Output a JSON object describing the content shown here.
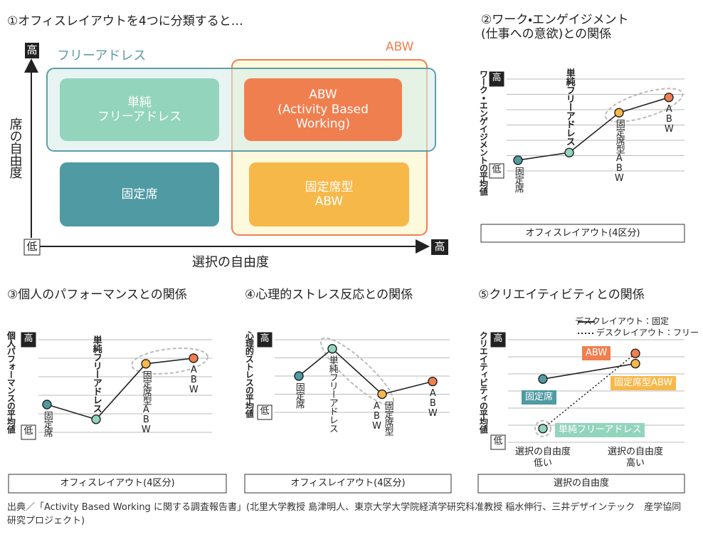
{
  "diagram": {
    "title": "①オフィスレイアウトを4つに分類すると…",
    "y_axis": "席の自由度",
    "x_axis": "選択の自由度",
    "y_high": "高",
    "x_high": "高",
    "low": "低",
    "groups": [
      "フリーアドレス",
      "ABW"
    ],
    "boxes": [
      "単純\nフリーアドレス",
      "ABW\n(Activity Based\nWorking)",
      "固定席",
      "固定席型\nABW"
    ]
  },
  "chart_data": [
    {
      "type": "line",
      "title": "②ワーク・エンゲイジメント\n(仕事への意欲)との関係",
      "y_label": "ワーク・エンゲイジメントの平均値",
      "x_label": "オフィスレイアウト(4区分)",
      "categories": [
        "固定席",
        "単純フリーアドレス",
        "固定席型ABW",
        "ABW"
      ],
      "colors": [
        "#4f9aa3",
        "#93d4bd",
        "#f7b84a",
        "#f07f50"
      ],
      "values": [
        0.7,
        1.2,
        3.8,
        4.8
      ],
      "ylim": [
        0,
        6
      ],
      "yticks": [
        {
          "value": 0,
          "label": "低"
        },
        {
          "value": 1,
          "label": null
        },
        {
          "value": 2,
          "label": null
        },
        {
          "value": 3,
          "label": null
        },
        {
          "value": 4,
          "label": null
        },
        {
          "value": 5,
          "label": null
        },
        {
          "value": 6,
          "label": "高"
        }
      ],
      "highlight": [
        2,
        3
      ]
    },
    {
      "type": "line",
      "title": "③個人のパフォーマンスとの関係",
      "y_label": "個人パフォーマンスの平均値",
      "x_label": "オフィスレイアウト(4区分)",
      "categories": [
        "固定席",
        "単純フリーアドレス",
        "固定席型ABW",
        "ABW"
      ],
      "colors": [
        "#4f9aa3",
        "#93d4bd",
        "#f7b84a",
        "#f07f50"
      ],
      "values": [
        1.5,
        0.7,
        3.7,
        4.0
      ],
      "ylim": [
        0,
        5
      ],
      "yticks": [
        {
          "value": 0,
          "label": "低"
        },
        {
          "value": 1,
          "label": null
        },
        {
          "value": 2,
          "label": null
        },
        {
          "value": 3,
          "label": null
        },
        {
          "value": 4,
          "label": null
        },
        {
          "value": 5,
          "label": "高"
        }
      ],
      "highlight": [
        2,
        3
      ]
    },
    {
      "type": "line",
      "title": "④心理的ストレス反応との関係",
      "y_label": "心理的ストレスの平均値",
      "x_label": "オフィスレイアウト(4区分)",
      "categories": [
        "固定席",
        "単純フリーアドレス",
        "固定席型ABW",
        "ABW"
      ],
      "colors": [
        "#4f9aa3",
        "#93d4bd",
        "#f7b84a",
        "#f07f50"
      ],
      "values": [
        2.0,
        3.5,
        1.0,
        1.7
      ],
      "ylim": [
        0,
        4
      ],
      "yticks": [
        {
          "value": 0,
          "label": "低"
        },
        {
          "value": 1,
          "label": null
        },
        {
          "value": 2,
          "label": null
        },
        {
          "value": 3,
          "label": null
        },
        {
          "value": 4,
          "label": "高"
        }
      ],
      "highlight": [
        1,
        2
      ]
    },
    {
      "type": "line",
      "title": "⑤クリエイティビティとの関係",
      "y_label": "クリエイティビティの平均値",
      "x_label": "選択の自由度",
      "categories": [
        "選択の自由度\n低い",
        "選択の自由度\n高い"
      ],
      "series": [
        {
          "name": "デスクレイアウト：固定",
          "style": "solid",
          "values": [
            3.7,
            4.6
          ],
          "point_labels": [
            "固定席",
            "固定席型ABW"
          ],
          "colors": [
            "#4f9aa3",
            "#f7b84a"
          ]
        },
        {
          "name": "デスクレイアウト：フリー",
          "style": "dotted",
          "values": [
            0.8,
            5.2
          ],
          "point_labels": [
            "単純フリーアドレス",
            "ABW"
          ],
          "colors": [
            "#93d4bd",
            "#f07f50"
          ]
        }
      ],
      "ylim": [
        0,
        6
      ],
      "yticks": [
        {
          "value": 0,
          "label": "低"
        },
        {
          "value": 1,
          "label": null
        },
        {
          "value": 2,
          "label": null
        },
        {
          "value": 3,
          "label": null
        },
        {
          "value": 4,
          "label": null
        },
        {
          "value": 5,
          "label": null
        },
        {
          "value": 6,
          "label": "高"
        }
      ],
      "highlight_series": 1,
      "highlight_point": 0
    }
  ],
  "source": "出典／「Activity Based Working に関する調査報告書」(北里大学教授 島津明人、東京大学大学院経済学研究科准教授 稲水伸行、三井デザインテック　産学協同研究プロジェクト)"
}
